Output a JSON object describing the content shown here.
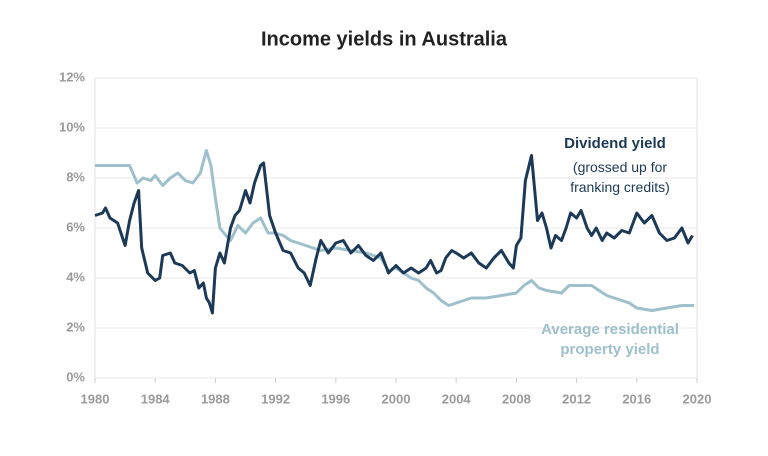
{
  "chart_data": {
    "type": "line",
    "title": "Income yields in Australia",
    "xlim": [
      1980,
      2020
    ],
    "xticks": [
      1980,
      1984,
      1988,
      1992,
      1996,
      2000,
      2004,
      2008,
      2012,
      2016,
      2020
    ],
    "ylim": [
      0,
      12
    ],
    "yticks": [
      {
        "value": 0,
        "label": "0%"
      },
      {
        "value": 2,
        "label": "2%"
      },
      {
        "value": 4,
        "label": "4%"
      },
      {
        "value": 6,
        "label": "6%"
      },
      {
        "value": 8,
        "label": "8%"
      },
      {
        "value": 10,
        "label": "10%"
      },
      {
        "value": 12,
        "label": "12%"
      }
    ],
    "grid": true,
    "series": [
      {
        "name": "Dividend yield",
        "note": "(grossed up for franking credits)",
        "color": "#1c3a57",
        "x": [
          1980,
          1980.5,
          1980.7,
          1981,
          1981.5,
          1982,
          1982.3,
          1982.6,
          1982.9,
          1983.1,
          1983.5,
          1984,
          1984.3,
          1984.5,
          1985,
          1985.3,
          1985.8,
          1986.3,
          1986.6,
          1986.9,
          1987.2,
          1987.4,
          1987.6,
          1987.8,
          1988,
          1988.3,
          1988.6,
          1989,
          1989.3,
          1989.6,
          1990,
          1990.3,
          1990.6,
          1991,
          1991.2,
          1991.6,
          1992,
          1992.5,
          1993,
          1993.5,
          1993.9,
          1994.3,
          1994.7,
          1995,
          1995.5,
          1996,
          1996.5,
          1997,
          1997.5,
          1998,
          1998.5,
          1999,
          1999.5,
          2000,
          2000.5,
          2001,
          2001.5,
          2002,
          2002.3,
          2002.7,
          2003,
          2003.3,
          2003.7,
          2004,
          2004.5,
          2005,
          2005.5,
          2006,
          2006.5,
          2007,
          2007.5,
          2007.8,
          2008,
          2008.3,
          2008.6,
          2009,
          2009.2,
          2009.4,
          2009.7,
          2010,
          2010.3,
          2010.6,
          2011,
          2011.3,
          2011.6,
          2012,
          2012.3,
          2012.7,
          2013,
          2013.3,
          2013.7,
          2014,
          2014.5,
          2015,
          2015.5,
          2016,
          2016.5,
          2017,
          2017.5,
          2018,
          2018.5,
          2019,
          2019.4,
          2019.7
        ],
        "values": [
          6.5,
          6.6,
          6.8,
          6.4,
          6.2,
          5.3,
          6.3,
          7.0,
          7.5,
          5.2,
          4.2,
          3.9,
          4.0,
          4.9,
          5.0,
          4.6,
          4.5,
          4.2,
          4.3,
          3.6,
          3.8,
          3.2,
          3.0,
          2.6,
          4.4,
          5.0,
          4.6,
          6.0,
          6.5,
          6.7,
          7.5,
          7.0,
          7.8,
          8.5,
          8.6,
          6.5,
          5.8,
          5.1,
          5.0,
          4.4,
          4.2,
          3.7,
          4.8,
          5.5,
          5.0,
          5.4,
          5.5,
          5.0,
          5.3,
          4.9,
          4.7,
          5.0,
          4.2,
          4.5,
          4.2,
          4.4,
          4.2,
          4.4,
          4.7,
          4.2,
          4.3,
          4.8,
          5.1,
          5.0,
          4.8,
          5.0,
          4.6,
          4.4,
          4.8,
          5.1,
          4.6,
          4.4,
          5.3,
          5.6,
          7.9,
          8.9,
          7.6,
          6.3,
          6.6,
          6.0,
          5.2,
          5.7,
          5.5,
          6.0,
          6.6,
          6.4,
          6.7,
          6.0,
          5.7,
          6.0,
          5.5,
          5.8,
          5.6,
          5.9,
          5.8,
          6.6,
          6.2,
          6.5,
          5.8,
          5.5,
          5.6,
          6.0,
          5.4,
          5.7
        ]
      },
      {
        "name": "Average residential property yield",
        "color": "#9dc0cc",
        "x": [
          1980,
          1982.3,
          1982.8,
          1983.2,
          1983.7,
          1984,
          1984.5,
          1985,
          1985.5,
          1986,
          1986.5,
          1987,
          1987.4,
          1987.7,
          1988,
          1988.3,
          1988.7,
          1989,
          1989.5,
          1990,
          1990.5,
          1991,
          1991.5,
          1992,
          1992.5,
          1993,
          1993.5,
          1994,
          1994.5,
          1995,
          1996,
          1997,
          1998,
          1999,
          1999.5,
          2000,
          2001,
          2001.5,
          2002,
          2002.5,
          2003,
          2003.5,
          2004,
          2004.5,
          2005,
          2006,
          2007,
          2008,
          2008.5,
          2009,
          2009.5,
          2010,
          2011,
          2011.5,
          2012,
          2013,
          2013.5,
          2014,
          2015,
          2015.5,
          2016,
          2017,
          2018,
          2019,
          2019.8
        ],
        "values": [
          8.5,
          8.5,
          7.8,
          8.0,
          7.9,
          8.1,
          7.7,
          8.0,
          8.2,
          7.9,
          7.8,
          8.2,
          9.1,
          8.5,
          7.2,
          6.0,
          5.7,
          5.5,
          6.1,
          5.8,
          6.2,
          6.4,
          5.8,
          5.8,
          5.7,
          5.5,
          5.4,
          5.3,
          5.2,
          5.1,
          5.2,
          5.1,
          5.0,
          4.8,
          4.3,
          4.4,
          4.0,
          3.9,
          3.6,
          3.4,
          3.1,
          2.9,
          3.0,
          3.1,
          3.2,
          3.2,
          3.3,
          3.4,
          3.7,
          3.9,
          3.6,
          3.5,
          3.4,
          3.7,
          3.7,
          3.7,
          3.5,
          3.3,
          3.1,
          3.0,
          2.8,
          2.7,
          2.8,
          2.9,
          2.9
        ]
      }
    ]
  }
}
